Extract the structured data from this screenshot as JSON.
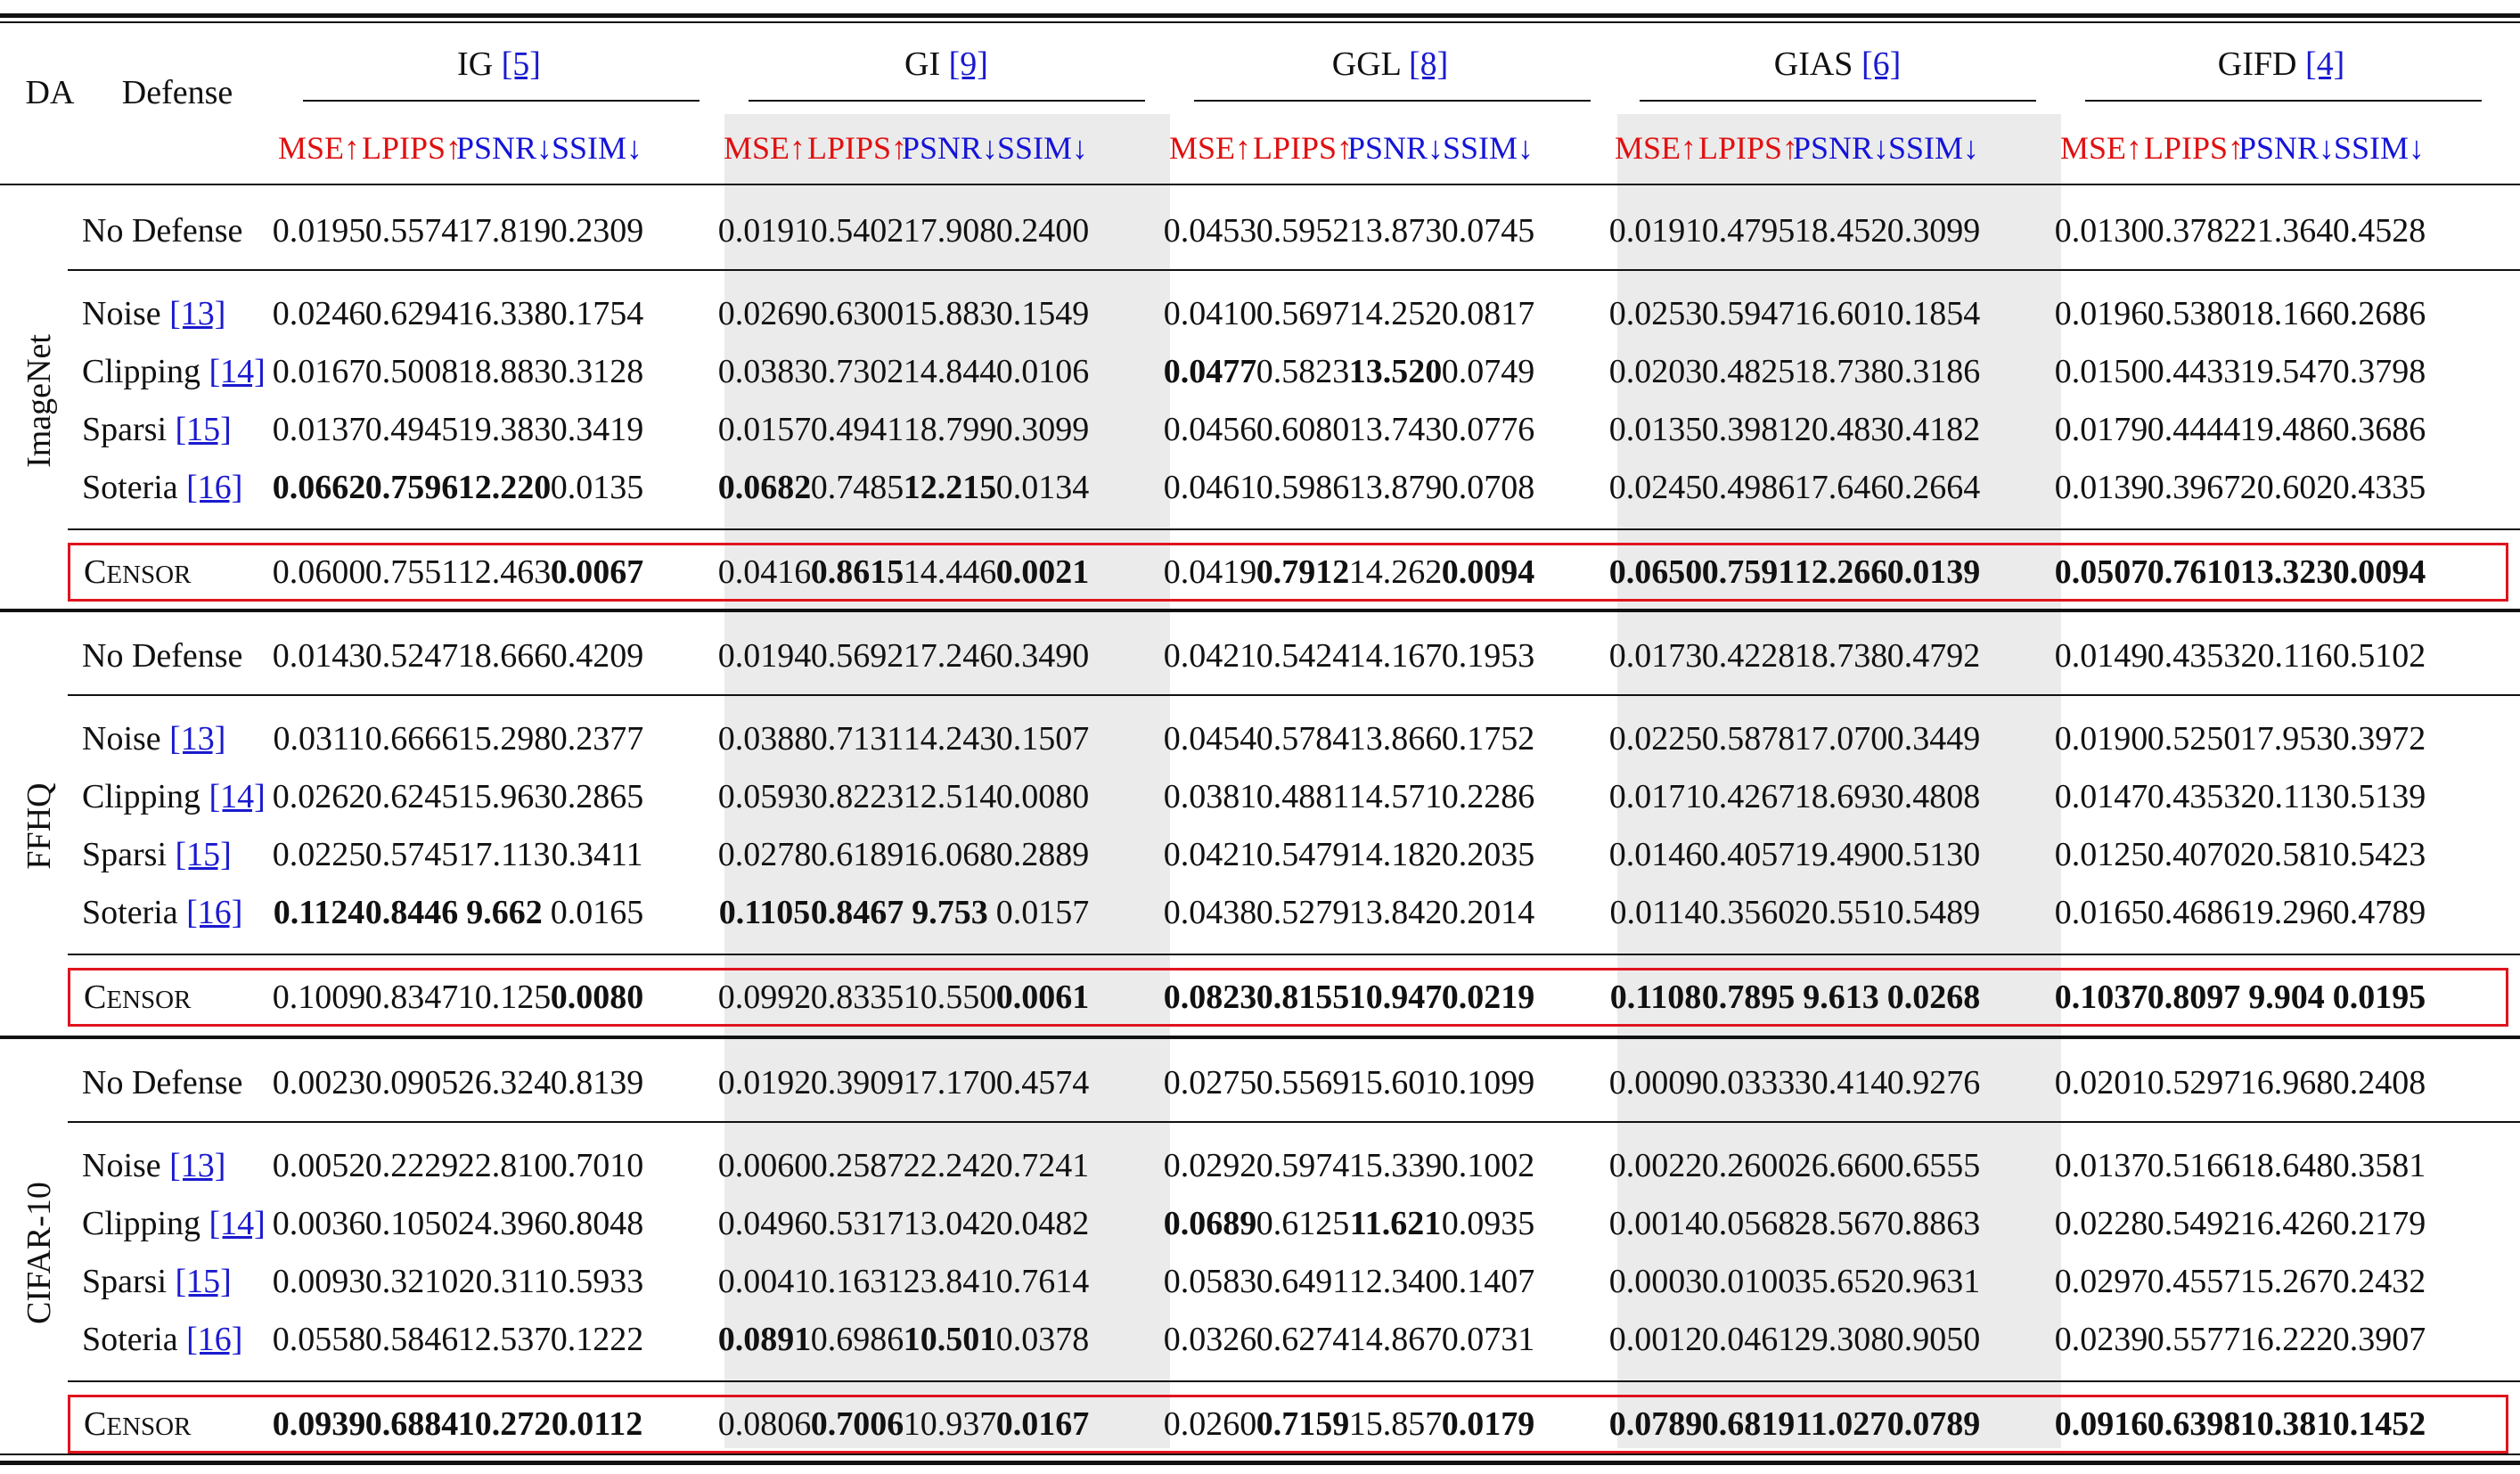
{
  "header": {
    "da_label": "DA",
    "defense_label": "Defense"
  },
  "chart_data": {
    "type": "table",
    "attacks": [
      {
        "name": "IG",
        "ref": "[5]"
      },
      {
        "name": "GI",
        "ref": "[9]"
      },
      {
        "name": "GGL",
        "ref": "[8]"
      },
      {
        "name": "GIAS",
        "ref": "[6]"
      },
      {
        "name": "GIFD",
        "ref": "[4]"
      }
    ],
    "metrics": [
      {
        "name": "MSE↑",
        "direction": "up",
        "color": "#e01010"
      },
      {
        "name": "LPIPS↑",
        "direction": "up",
        "color": "#e01010"
      },
      {
        "name": "PSNR↓",
        "direction": "down",
        "color": "#1414d8"
      },
      {
        "name": "SSIM↓",
        "direction": "down",
        "color": "#1414d8"
      }
    ],
    "blocks": [
      {
        "dataset": "ImageNet",
        "rows": [
          {
            "defense": "No Defense",
            "ref": "",
            "values": [
              "0.0195",
              "0.5574",
              "17.819",
              "0.2309",
              "0.0191",
              "0.5402",
              "17.908",
              "0.2400",
              "0.0453",
              "0.5952",
              "13.873",
              "0.0745",
              "0.0191",
              "0.4795",
              "18.452",
              "0.3099",
              "0.0130",
              "0.3782",
              "21.364",
              "0.4528"
            ],
            "bold": []
          },
          {
            "defense": "Noise",
            "ref": "[13]",
            "values": [
              "0.0246",
              "0.6294",
              "16.338",
              "0.1754",
              "0.0269",
              "0.6300",
              "15.883",
              "0.1549",
              "0.0410",
              "0.5697",
              "14.252",
              "0.0817",
              "0.0253",
              "0.5947",
              "16.601",
              "0.1854",
              "0.0196",
              "0.5380",
              "18.166",
              "0.2686"
            ],
            "bold": []
          },
          {
            "defense": "Clipping",
            "ref": "[14]",
            "values": [
              "0.0167",
              "0.5008",
              "18.883",
              "0.3128",
              "0.0383",
              "0.7302",
              "14.844",
              "0.0106",
              "0.0477",
              "0.5823",
              "13.520",
              "0.0749",
              "0.0203",
              "0.4825",
              "18.738",
              "0.3186",
              "0.0150",
              "0.4433",
              "19.547",
              "0.3798"
            ],
            "bold": [
              8,
              10
            ]
          },
          {
            "defense": "Sparsi",
            "ref": "[15]",
            "values": [
              "0.0137",
              "0.4945",
              "19.383",
              "0.3419",
              "0.0157",
              "0.4941",
              "18.799",
              "0.3099",
              "0.0456",
              "0.6080",
              "13.743",
              "0.0776",
              "0.0135",
              "0.3981",
              "20.483",
              "0.4182",
              "0.0179",
              "0.4444",
              "19.486",
              "0.3686"
            ],
            "bold": []
          },
          {
            "defense": "Soteria",
            "ref": "[16]",
            "values": [
              "0.0662",
              "0.7596",
              "12.220",
              "0.0135",
              "0.0682",
              "0.7485",
              "12.215",
              "0.0134",
              "0.0461",
              "0.5986",
              "13.879",
              "0.0708",
              "0.0245",
              "0.4986",
              "17.646",
              "0.2664",
              "0.0139",
              "0.3967",
              "20.602",
              "0.4335"
            ],
            "bold": [
              0,
              1,
              2,
              4,
              6
            ]
          },
          {
            "defense": "CENSOR",
            "ref": "",
            "censor": true,
            "values": [
              "0.0600",
              "0.7551",
              "12.463",
              "0.0067",
              "0.0416",
              "0.8615",
              "14.446",
              "0.0021",
              "0.0419",
              "0.7912",
              "14.262",
              "0.0094",
              "0.0650",
              "0.7591",
              "12.266",
              "0.0139",
              "0.0507",
              "0.7610",
              "13.323",
              "0.0094"
            ],
            "bold": [
              3,
              5,
              7,
              9,
              11,
              12,
              13,
              14,
              15,
              16,
              17,
              18,
              19
            ]
          }
        ]
      },
      {
        "dataset": "FFHQ",
        "rows": [
          {
            "defense": "No Defense",
            "ref": "",
            "values": [
              "0.0143",
              "0.5247",
              "18.666",
              "0.4209",
              "0.0194",
              "0.5692",
              "17.246",
              "0.3490",
              "0.0421",
              "0.5424",
              "14.167",
              "0.1953",
              "0.0173",
              "0.4228",
              "18.738",
              "0.4792",
              "0.0149",
              "0.4353",
              "20.116",
              "0.5102"
            ],
            "bold": []
          },
          {
            "defense": "Noise",
            "ref": "[13]",
            "values": [
              "0.0311",
              "0.6666",
              "15.298",
              "0.2377",
              "0.0388",
              "0.7131",
              "14.243",
              "0.1507",
              "0.0454",
              "0.5784",
              "13.866",
              "0.1752",
              "0.0225",
              "0.5878",
              "17.070",
              "0.3449",
              "0.0190",
              "0.5250",
              "17.953",
              "0.3972"
            ],
            "bold": []
          },
          {
            "defense": "Clipping",
            "ref": "[14]",
            "values": [
              "0.0262",
              "0.6245",
              "15.963",
              "0.2865",
              "0.0593",
              "0.8223",
              "12.514",
              "0.0080",
              "0.0381",
              "0.4881",
              "14.571",
              "0.2286",
              "0.0171",
              "0.4267",
              "18.693",
              "0.4808",
              "0.0147",
              "0.4353",
              "20.113",
              "0.5139"
            ],
            "bold": []
          },
          {
            "defense": "Sparsi",
            "ref": "[15]",
            "values": [
              "0.0225",
              "0.5745",
              "17.113",
              "0.3411",
              "0.0278",
              "0.6189",
              "16.068",
              "0.2889",
              "0.0421",
              "0.5479",
              "14.182",
              "0.2035",
              "0.0146",
              "0.4057",
              "19.490",
              "0.5130",
              "0.0125",
              "0.4070",
              "20.581",
              "0.5423"
            ],
            "bold": []
          },
          {
            "defense": "Soteria",
            "ref": "[16]",
            "values": [
              "0.1124",
              "0.8446",
              "9.662",
              "0.0165",
              "0.1105",
              "0.8467",
              "9.753",
              "0.0157",
              "0.0438",
              "0.5279",
              "13.842",
              "0.2014",
              "0.0114",
              "0.3560",
              "20.551",
              "0.5489",
              "0.0165",
              "0.4686",
              "19.296",
              "0.4789"
            ],
            "bold": [
              0,
              1,
              2,
              4,
              5,
              6
            ]
          },
          {
            "defense": "CENSOR",
            "ref": "",
            "censor": true,
            "values": [
              "0.1009",
              "0.8347",
              "10.125",
              "0.0080",
              "0.0992",
              "0.8335",
              "10.550",
              "0.0061",
              "0.0823",
              "0.8155",
              "10.947",
              "0.0219",
              "0.1108",
              "0.7895",
              "9.613",
              "0.0268",
              "0.1037",
              "0.8097",
              "9.904",
              "0.0195"
            ],
            "bold": [
              3,
              7,
              8,
              9,
              10,
              11,
              12,
              13,
              14,
              15,
              16,
              17,
              18,
              19
            ]
          }
        ]
      },
      {
        "dataset": "CIFAR-10",
        "rows": [
          {
            "defense": "No Defense",
            "ref": "",
            "values": [
              "0.0023",
              "0.0905",
              "26.324",
              "0.8139",
              "0.0192",
              "0.3909",
              "17.170",
              "0.4574",
              "0.0275",
              "0.5569",
              "15.601",
              "0.1099",
              "0.0009",
              "0.0333",
              "30.414",
              "0.9276",
              "0.0201",
              "0.5297",
              "16.968",
              "0.2408"
            ],
            "bold": []
          },
          {
            "defense": "Noise",
            "ref": "[13]",
            "values": [
              "0.0052",
              "0.2229",
              "22.810",
              "0.7010",
              "0.0060",
              "0.2587",
              "22.242",
              "0.7241",
              "0.0292",
              "0.5974",
              "15.339",
              "0.1002",
              "0.0022",
              "0.2600",
              "26.660",
              "0.6555",
              "0.0137",
              "0.5166",
              "18.648",
              "0.3581"
            ],
            "bold": []
          },
          {
            "defense": "Clipping",
            "ref": "[14]",
            "values": [
              "0.0036",
              "0.1050",
              "24.396",
              "0.8048",
              "0.0496",
              "0.5317",
              "13.042",
              "0.0482",
              "0.0689",
              "0.6125",
              "11.621",
              "0.0935",
              "0.0014",
              "0.0568",
              "28.567",
              "0.8863",
              "0.0228",
              "0.5492",
              "16.426",
              "0.2179"
            ],
            "bold": [
              8,
              10
            ]
          },
          {
            "defense": "Sparsi",
            "ref": "[15]",
            "values": [
              "0.0093",
              "0.3210",
              "20.311",
              "0.5933",
              "0.0041",
              "0.1631",
              "23.841",
              "0.7614",
              "0.0583",
              "0.6491",
              "12.340",
              "0.1407",
              "0.0003",
              "0.0100",
              "35.652",
              "0.9631",
              "0.0297",
              "0.4557",
              "15.267",
              "0.2432"
            ],
            "bold": []
          },
          {
            "defense": "Soteria",
            "ref": "[16]",
            "values": [
              "0.0558",
              "0.5846",
              "12.537",
              "0.1222",
              "0.0891",
              "0.6986",
              "10.501",
              "0.0378",
              "0.0326",
              "0.6274",
              "14.867",
              "0.0731",
              "0.0012",
              "0.0461",
              "29.308",
              "0.9050",
              "0.0239",
              "0.5577",
              "16.222",
              "0.3907"
            ],
            "bold": [
              4,
              6
            ]
          },
          {
            "defense": "CENSOR",
            "ref": "",
            "censor": true,
            "values": [
              "0.0939",
              "0.6884",
              "10.272",
              "0.0112",
              "0.0806",
              "0.7006",
              "10.937",
              "0.0167",
              "0.0260",
              "0.7159",
              "15.857",
              "0.0179",
              "0.0789",
              "0.6819",
              "11.027",
              "0.0789",
              "0.0916",
              "0.6398",
              "10.381",
              "0.1452"
            ],
            "bold": [
              0,
              1,
              2,
              3,
              5,
              7,
              9,
              11,
              12,
              13,
              14,
              15,
              16,
              17,
              18,
              19
            ]
          }
        ]
      }
    ]
  }
}
